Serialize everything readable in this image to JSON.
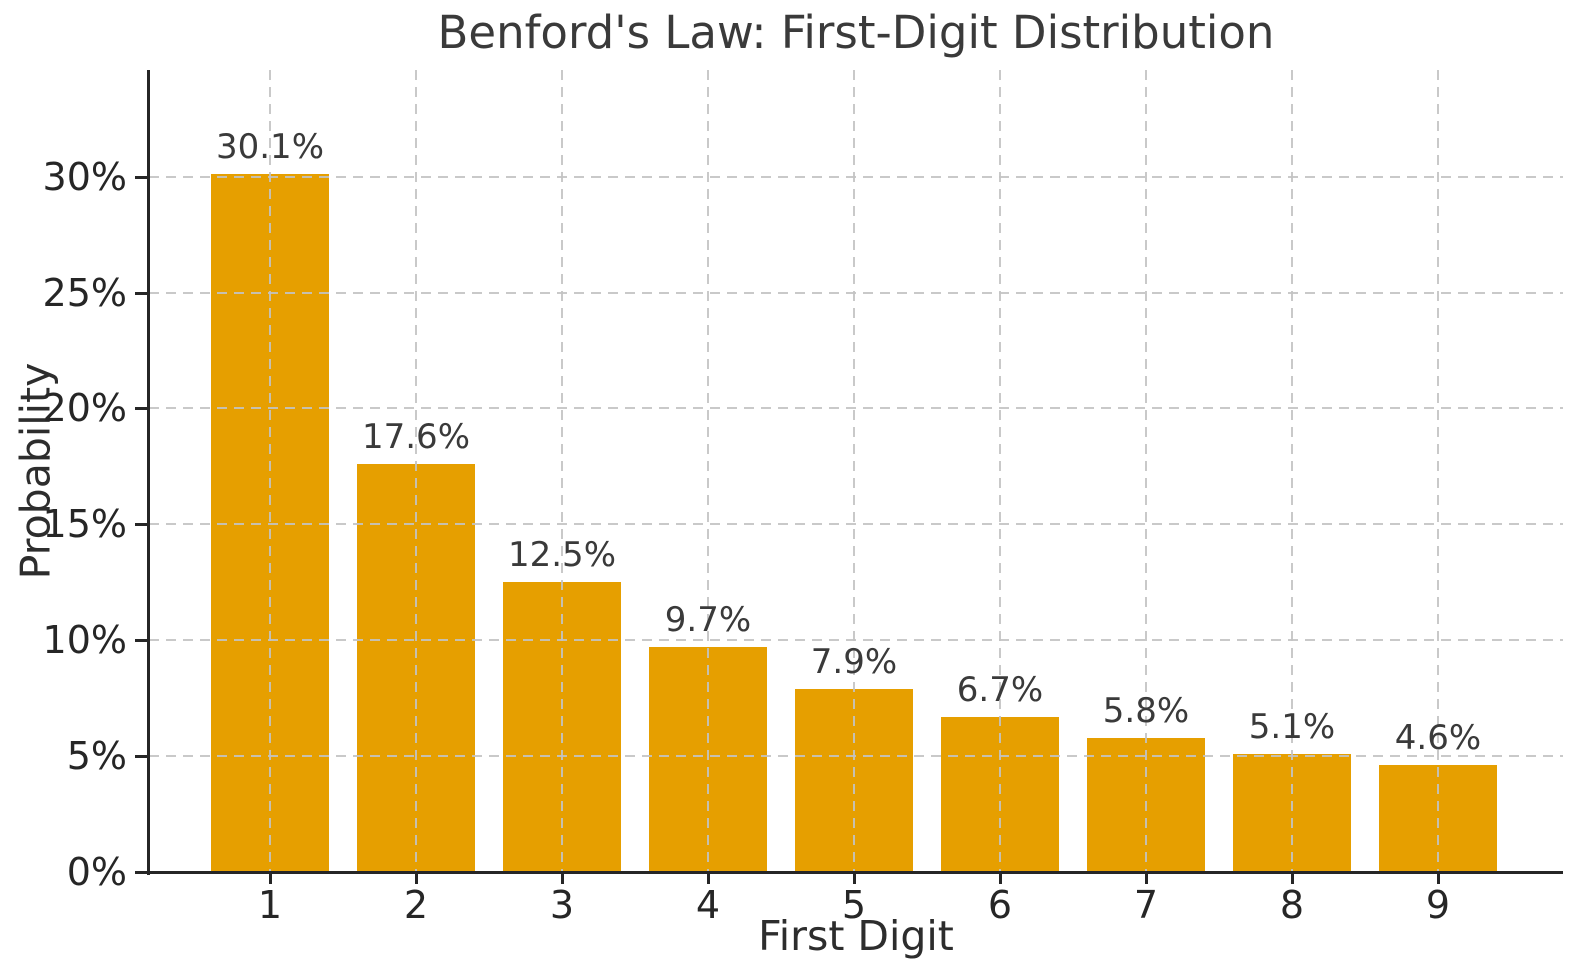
{
  "chart_data": {
    "type": "bar",
    "title": "Benford's Law: First-Digit Distribution",
    "xlabel": "First Digit",
    "ylabel": "Probability",
    "categories": [
      "1",
      "2",
      "3",
      "4",
      "5",
      "6",
      "7",
      "8",
      "9"
    ],
    "values": [
      30.1,
      17.6,
      12.5,
      9.7,
      7.9,
      6.7,
      5.8,
      5.1,
      4.6
    ],
    "bar_value_labels": [
      "30.1%",
      "17.6%",
      "12.5%",
      "9.7%",
      "7.9%",
      "6.7%",
      "5.8%",
      "5.1%",
      "4.6%"
    ],
    "y_ticks": [
      {
        "value": 0,
        "label": "0%"
      },
      {
        "value": 5,
        "label": "5%"
      },
      {
        "value": 10,
        "label": "10%"
      },
      {
        "value": 15,
        "label": "15%"
      },
      {
        "value": 20,
        "label": "20%"
      },
      {
        "value": 25,
        "label": "25%"
      },
      {
        "value": 30,
        "label": "30%"
      }
    ],
    "ylim": [
      0,
      34.6
    ],
    "grid": {
      "style": "dashed",
      "axes": "both",
      "drawn_over_bars": true
    },
    "legend": "none",
    "colors": {
      "bar": "#E69F00",
      "grid": "#C3C3C3",
      "axis": "#262626",
      "title_text": "#3A3A3A",
      "tick_text": "#262626",
      "bar_label_text": "#3A3A3A",
      "background": "#FFFFFF"
    }
  }
}
